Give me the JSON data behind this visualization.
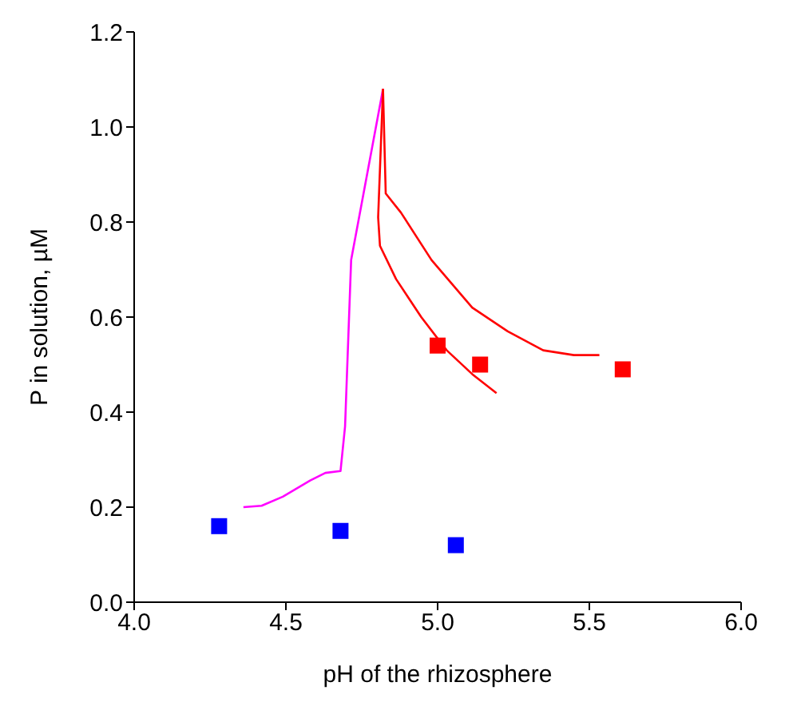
{
  "chart_data": {
    "type": "line",
    "xlabel": "pH of the rhizosphere",
    "ylabel": "P in solution, µM",
    "xlim": [
      4.0,
      6.0
    ],
    "xticks": [
      {
        "value": 4.0,
        "label": "4.0"
      },
      {
        "value": 4.5,
        "label": "4.5"
      },
      {
        "value": 5.0,
        "label": "5.0"
      },
      {
        "value": 5.5,
        "label": "5.5"
      },
      {
        "value": 6.0,
        "label": "6.0"
      }
    ],
    "ylim": [
      0,
      1.2
    ],
    "yticks": [
      {
        "value": 0,
        "label": "0.0"
      },
      {
        "value": 0.2,
        "label": "0.2"
      },
      {
        "value": 0.4,
        "label": "0.4"
      },
      {
        "value": 0.6,
        "label": "0.6"
      },
      {
        "value": 0.8,
        "label": "0.8"
      },
      {
        "value": 1.0,
        "label": "1.0"
      },
      {
        "value": 1.2,
        "label": "1.2"
      }
    ],
    "grid": false,
    "series": [
      {
        "marker": "none",
        "color": "#ff00ff",
        "x": [
          4.36,
          4.42,
          4.49,
          4.58,
          4.63,
          4.68,
          4.695,
          4.715,
          4.82
        ],
        "values": [
          0.2,
          0.203,
          0.222,
          0.256,
          0.272,
          0.276,
          0.37,
          0.72,
          1.08
        ]
      },
      {
        "type": "line",
        "marker": "none",
        "color": "#ff0000",
        "x": [
          4.82,
          4.804,
          4.81,
          4.863,
          4.946,
          5.03,
          5.114,
          5.194
        ],
        "values": [
          1.08,
          0.81,
          0.75,
          0.68,
          0.6,
          0.53,
          0.48,
          0.44
        ]
      },
      {
        "type": "line",
        "marker": "none",
        "color": "#ff0000",
        "x": [
          4.82,
          4.829,
          4.879,
          4.98,
          5.114,
          5.231,
          5.348,
          5.449,
          5.533
        ],
        "values": [
          1.08,
          0.86,
          0.82,
          0.72,
          0.62,
          0.57,
          0.53,
          0.52,
          0.52
        ]
      },
      {
        "type": "scatter",
        "marker": "square",
        "color": "#ff0000",
        "x": [
          5.0,
          5.14,
          5.61
        ],
        "values": [
          0.54,
          0.5,
          0.49
        ]
      },
      {
        "type": "scatter",
        "marker": "square",
        "color": "#0000ff",
        "x": [
          4.28,
          4.68,
          5.06
        ],
        "values": [
          0.16,
          0.15,
          0.12
        ]
      }
    ]
  }
}
